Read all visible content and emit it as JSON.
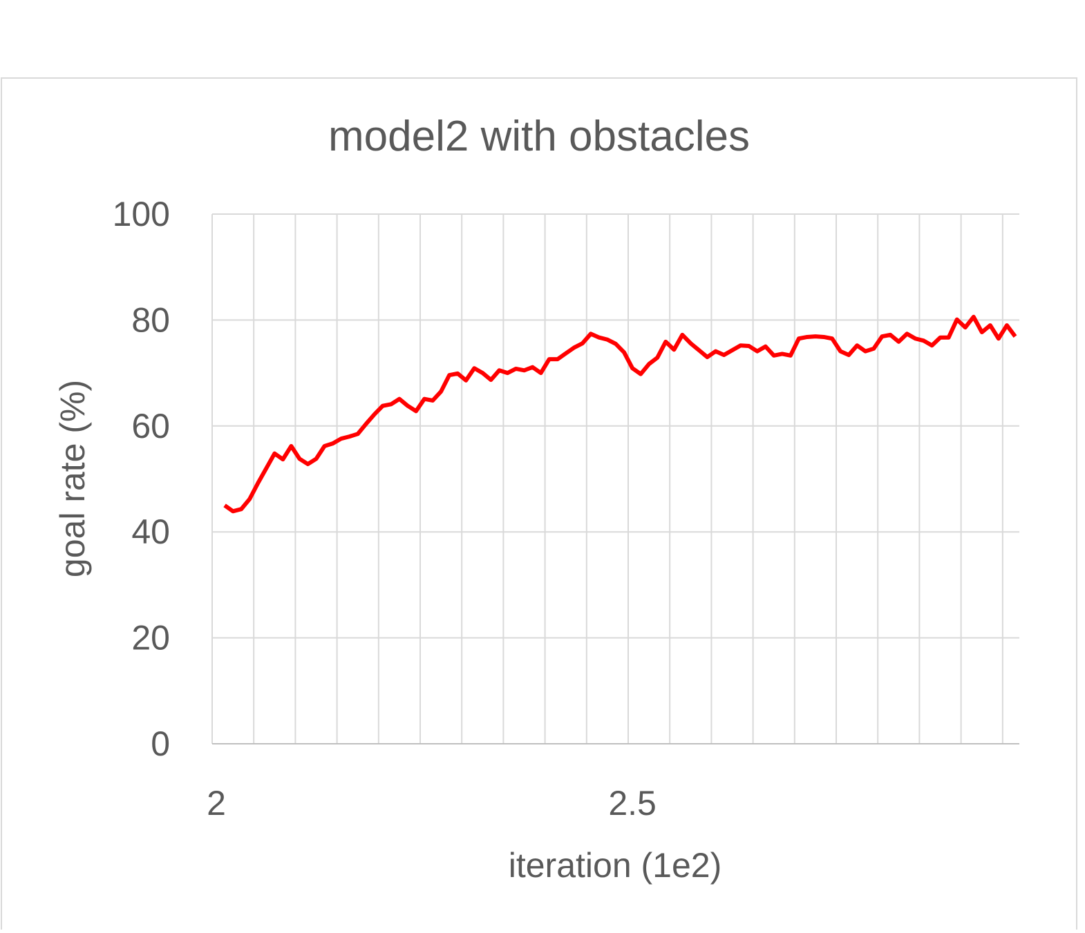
{
  "chart_data": {
    "type": "line",
    "title": "model2 with obstacles",
    "x_label": "iteration (1e2)",
    "y_label": "goal rate (%)",
    "x": [
      2.01,
      2.02,
      2.03,
      2.04,
      2.05,
      2.06,
      2.07,
      2.08,
      2.09,
      2.1,
      2.11,
      2.12,
      2.13,
      2.14,
      2.15,
      2.16,
      2.17,
      2.18,
      2.19,
      2.2,
      2.21,
      2.22,
      2.23,
      2.24,
      2.25,
      2.26,
      2.27,
      2.28,
      2.29,
      2.3,
      2.31,
      2.32,
      2.33,
      2.34,
      2.35,
      2.36,
      2.37,
      2.38,
      2.39,
      2.4,
      2.41,
      2.42,
      2.43,
      2.44,
      2.45,
      2.46,
      2.47,
      2.48,
      2.49,
      2.5,
      2.51,
      2.52,
      2.53,
      2.54,
      2.55,
      2.56,
      2.57,
      2.58,
      2.59,
      2.6,
      2.61,
      2.62,
      2.63,
      2.64,
      2.65,
      2.66,
      2.67,
      2.68,
      2.69,
      2.7,
      2.71,
      2.72,
      2.73,
      2.74,
      2.75,
      2.76,
      2.77,
      2.78,
      2.79,
      2.8,
      2.81,
      2.82,
      2.83,
      2.84,
      2.85,
      2.86,
      2.87,
      2.88,
      2.89,
      2.9,
      2.91,
      2.92,
      2.93,
      2.94,
      2.95,
      2.96
    ],
    "series": [
      {
        "name": "goal rate",
        "color": "#ff0000",
        "values": [
          45.0,
          43.9,
          44.3,
          46.2,
          49.2,
          52.0,
          54.8,
          53.7,
          56.2,
          53.8,
          52.8,
          53.8,
          56.2,
          56.7,
          57.6,
          58.0,
          58.5,
          60.4,
          62.2,
          63.8,
          64.1,
          65.1,
          63.8,
          62.8,
          65.1,
          64.8,
          66.5,
          69.6,
          69.9,
          68.6,
          70.9,
          70.0,
          68.7,
          70.5,
          70.0,
          70.8,
          70.5,
          71.1,
          70.0,
          72.6,
          72.6,
          73.7,
          74.8,
          75.6,
          77.4,
          76.7,
          76.3,
          75.5,
          73.9,
          70.9,
          69.8,
          71.7,
          72.9,
          75.9,
          74.4,
          77.2,
          75.6,
          74.3,
          73.0,
          74.1,
          73.4,
          74.3,
          75.2,
          75.1,
          74.1,
          75.0,
          73.3,
          73.6,
          73.3,
          76.5,
          76.8,
          76.9,
          76.8,
          76.5,
          74.1,
          73.4,
          75.2,
          74.1,
          74.6,
          76.9,
          77.2,
          75.9,
          77.4,
          76.5,
          76.1,
          75.2,
          76.7,
          76.7,
          80.1,
          78.6,
          80.6,
          77.7,
          79.0,
          76.5,
          79.0,
          76.9
        ]
      }
    ],
    "xlim": [
      1.995,
      2.965
    ],
    "xticks": [
      2,
      2.5
    ],
    "ylim": [
      0,
      100
    ],
    "yticks": [
      0,
      20,
      40,
      60,
      80,
      100
    ],
    "grid": true
  }
}
